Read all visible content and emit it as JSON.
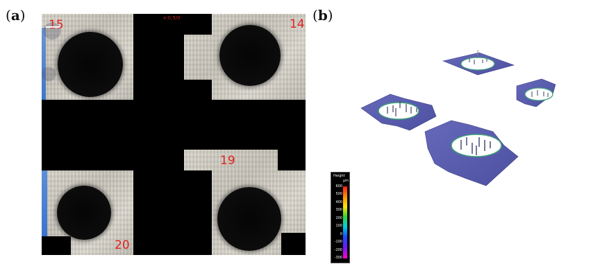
{
  "panels": {
    "a": {
      "label_open": "(",
      "label_letter": "a",
      "label_close": ")"
    },
    "b": {
      "label_open": "(",
      "label_letter": "b",
      "label_close": ")"
    }
  },
  "scan_tiles": [
    {
      "number": "15",
      "number_color": "#e0221f"
    },
    {
      "number": "14",
      "number_color": "#e0221f"
    },
    {
      "number": "19",
      "number_color": "#e0221f"
    },
    {
      "number": "20",
      "number_color": "#e0221f"
    }
  ],
  "scale_bar_text": "x-0.5/0",
  "colorbar": {
    "title": "Height",
    "unit": "μm",
    "ticks": [
      "600",
      "500",
      "400",
      "300",
      "200",
      "100",
      "0",
      "-100",
      "-200",
      "-300"
    ]
  },
  "colors": {
    "surface_3d": "#5c5fb0",
    "hole_fill": "#ffffff",
    "rim": "#3fa07a",
    "tile_background": "#000000",
    "metal_tile": "#d3cfc6",
    "left_edge_stain": "#4a7fd0"
  }
}
